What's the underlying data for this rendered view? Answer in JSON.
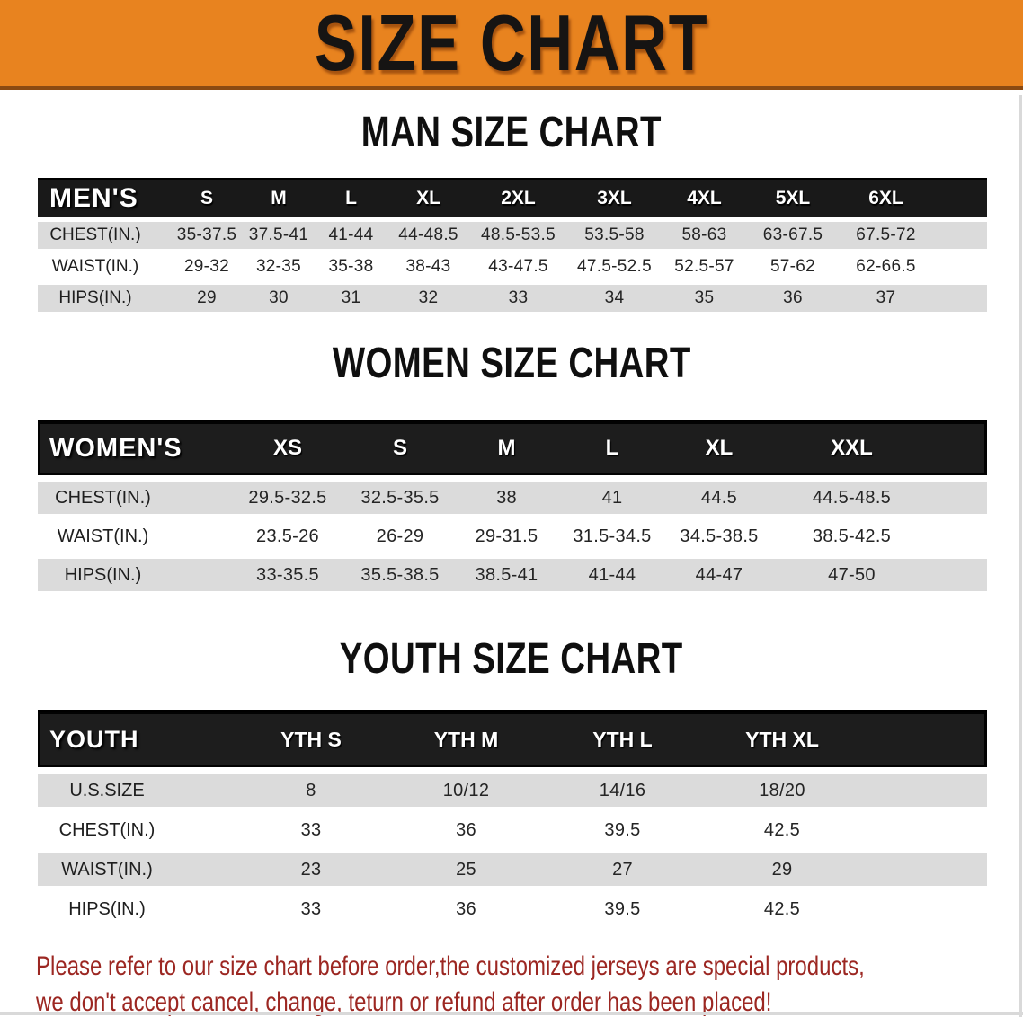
{
  "banner": {
    "title": "SIZE CHART",
    "bg_color": "#E8831F",
    "edge_color": "#8A4A12"
  },
  "colors": {
    "header_bar": "#1d1d1d",
    "gray_row": "#dbdbdb",
    "footnote_red": "#9C2722"
  },
  "sections": [
    {
      "id": "men",
      "heading": "MAN SIZE CHART",
      "corner_label": "MEN'S",
      "columns": [
        "S",
        "M",
        "L",
        "XL",
        "2XL",
        "3XL",
        "4XL",
        "5XL",
        "6XL"
      ],
      "rows": [
        {
          "label": "CHEST(IN.)",
          "values": [
            "35-37.5",
            "37.5-41",
            "41-44",
            "44-48.5",
            "48.5-53.5",
            "53.5-58",
            "58-63",
            "63-67.5",
            "67.5-72"
          ]
        },
        {
          "label": "WAIST(IN.)",
          "values": [
            "29-32",
            "32-35",
            "35-38",
            "38-43",
            "43-47.5",
            "47.5-52.5",
            "52.5-57",
            "57-62",
            "62-66.5"
          ]
        },
        {
          "label": "HIPS(IN.)",
          "values": [
            "29",
            "30",
            "31",
            "32",
            "33",
            "34",
            "35",
            "36",
            "37"
          ]
        }
      ]
    },
    {
      "id": "women",
      "heading": "WOMEN SIZE CHART",
      "corner_label": "WOMEN'S",
      "columns": [
        "XS",
        "S",
        "M",
        "L",
        "XL",
        "XXL"
      ],
      "rows": [
        {
          "label": "CHEST(IN.)",
          "values": [
            "29.5-32.5",
            "32.5-35.5",
            "38",
            "41",
            "44.5",
            "44.5-48.5"
          ]
        },
        {
          "label": "WAIST(IN.)",
          "values": [
            "23.5-26",
            "26-29",
            "29-31.5",
            "31.5-34.5",
            "34.5-38.5",
            "38.5-42.5"
          ]
        },
        {
          "label": "HIPS(IN.)",
          "values": [
            "33-35.5",
            "35.5-38.5",
            "38.5-41",
            "41-44",
            "44-47",
            "47-50"
          ]
        }
      ]
    },
    {
      "id": "youth",
      "heading": "YOUTH SIZE CHART",
      "corner_label": "YOUTH",
      "columns": [
        "YTH S",
        "YTH M",
        "YTH L",
        "YTH XL"
      ],
      "rows": [
        {
          "label": "U.S.SIZE",
          "values": [
            "8",
            "10/12",
            "14/16",
            "18/20"
          ]
        },
        {
          "label": "CHEST(IN.)",
          "values": [
            "33",
            "36",
            "39.5",
            "42.5"
          ]
        },
        {
          "label": "WAIST(IN.)",
          "values": [
            "23",
            "25",
            "27",
            "29"
          ]
        },
        {
          "label": "HIPS(IN.)",
          "values": [
            "33",
            "36",
            "39.5",
            "42.5"
          ]
        }
      ]
    }
  ],
  "footnote": {
    "line1": "Please refer to our size chart before order,the customized jerseys are special products,",
    "line2": "we don't accept cancel, change, teturn or refund after order has been placed!"
  }
}
